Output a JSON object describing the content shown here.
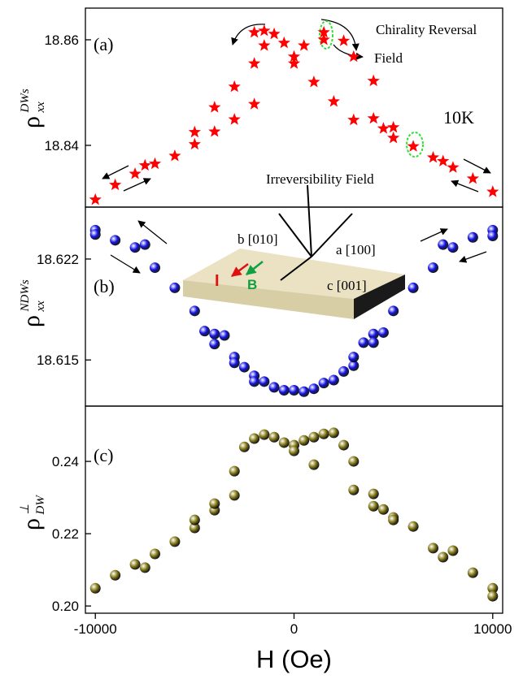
{
  "chart_data": [
    {
      "type": "scatter",
      "marker": "star",
      "color": "#ff0000",
      "ylabel": "ρ",
      "ylabel_sup": "DWs",
      "ylabel_sub": "xx",
      "annotations": [
        "(a)",
        "Chirality Reversal",
        "Field",
        "10K",
        "Irreversibility Field"
      ],
      "xlim": [
        -10500,
        10500
      ],
      "ylim": [
        18.8283,
        18.866
      ],
      "yticks": [
        18.84,
        18.86
      ],
      "x": [
        -10000,
        -9000,
        -8000,
        -7500,
        -7000,
        -6000,
        -5000,
        -5000,
        -4000,
        -4000,
        -3000,
        -3000,
        -2000,
        -2000,
        -2000,
        -1500,
        -1500,
        -1000,
        -500,
        0,
        0,
        500,
        1000,
        1500,
        1500,
        2000,
        2500,
        3000,
        3000,
        4000,
        4000,
        4500,
        5000,
        5000,
        6000,
        7000,
        7500,
        8000,
        9000,
        10000
      ],
      "values": [
        18.8297,
        18.8325,
        18.8346,
        18.8362,
        18.8365,
        18.838,
        18.8402,
        18.8425,
        18.8426,
        18.8472,
        18.8449,
        18.8511,
        18.8478,
        18.8555,
        18.8614,
        18.8589,
        18.8617,
        18.8611,
        18.8594,
        18.8568,
        18.8555,
        18.8589,
        18.852,
        18.86,
        18.8614,
        18.8483,
        18.8598,
        18.8568,
        18.8448,
        18.8451,
        18.8522,
        18.8432,
        18.8414,
        18.8434,
        18.8398,
        18.8377,
        18.837,
        18.8358,
        18.8337,
        18.8312
      ]
    },
    {
      "type": "scatter",
      "marker": "sphere",
      "color": "#1414e6",
      "ylabel": "ρ",
      "ylabel_sup": "NDWs",
      "ylabel_sub": "xx",
      "annotations": [
        "(b)",
        "b [010]",
        "a [100]",
        "c [001]",
        "I",
        "B"
      ],
      "xlim": [
        -10500,
        10500
      ],
      "ylim": [
        18.6118,
        18.6256
      ],
      "yticks": [
        18.615,
        18.622
      ],
      "x": [
        -10000,
        -10000,
        -9000,
        -8000,
        -7500,
        -7000,
        -6000,
        -5000,
        -4500,
        -4000,
        -4000,
        -3500,
        -3000,
        -3000,
        -2500,
        -2000,
        -2000,
        -1500,
        -1000,
        -500,
        0,
        500,
        1000,
        1500,
        2000,
        2500,
        3000,
        3000,
        3500,
        4000,
        4000,
        4500,
        5000,
        6000,
        7000,
        7500,
        8000,
        9000,
        10000,
        10000
      ],
      "values": [
        18.624,
        18.6237,
        18.6233,
        18.6228,
        18.623,
        18.6214,
        18.62,
        18.6184,
        18.617,
        18.6168,
        18.6161,
        18.6167,
        18.6152,
        18.6148,
        18.6145,
        18.6139,
        18.6135,
        18.6135,
        18.6131,
        18.6129,
        18.6129,
        18.6128,
        18.613,
        18.6134,
        18.6136,
        18.6142,
        18.6146,
        18.6152,
        18.6162,
        18.6168,
        18.6162,
        18.6169,
        18.6184,
        18.62,
        18.6214,
        18.623,
        18.6228,
        18.6235,
        18.624,
        18.6236
      ]
    },
    {
      "type": "scatter",
      "marker": "sphere",
      "color": "#847a16",
      "ylabel": "ρ",
      "ylabel_sup": "⊥",
      "ylabel_sub": "DW",
      "annotations": [
        "(c)"
      ],
      "xlabel": "H (Oe)",
      "xlim": [
        -10500,
        10500
      ],
      "xticks": [
        -10000,
        0,
        10000
      ],
      "ylim": [
        0.198,
        0.2553
      ],
      "yticks": [
        {
          "value": 0.2,
          "label": "0.20"
        },
        0.22,
        0.24
      ],
      "x": [
        -10000,
        -9000,
        -8000,
        -7500,
        -7000,
        -6000,
        -5000,
        -5000,
        -4000,
        -4000,
        -3000,
        -3000,
        -2500,
        -2000,
        -1500,
        -1000,
        -500,
        0,
        0,
        500,
        1000,
        1000,
        1500,
        2000,
        2500,
        3000,
        3000,
        4000,
        4000,
        4500,
        5000,
        5000,
        6000,
        7000,
        7500,
        8000,
        9000,
        10000,
        10000
      ],
      "values": [
        0.2049,
        0.2085,
        0.2115,
        0.2106,
        0.2144,
        0.2178,
        0.2216,
        0.2238,
        0.2265,
        0.2283,
        0.2306,
        0.2373,
        0.244,
        0.2463,
        0.2474,
        0.2467,
        0.2452,
        0.2445,
        0.2429,
        0.2458,
        0.2391,
        0.2467,
        0.2476,
        0.2479,
        0.2445,
        0.2321,
        0.24,
        0.231,
        0.2276,
        0.2267,
        0.2245,
        0.2238,
        0.222,
        0.216,
        0.2135,
        0.2153,
        0.2092,
        0.2049,
        0.2027
      ]
    }
  ]
}
